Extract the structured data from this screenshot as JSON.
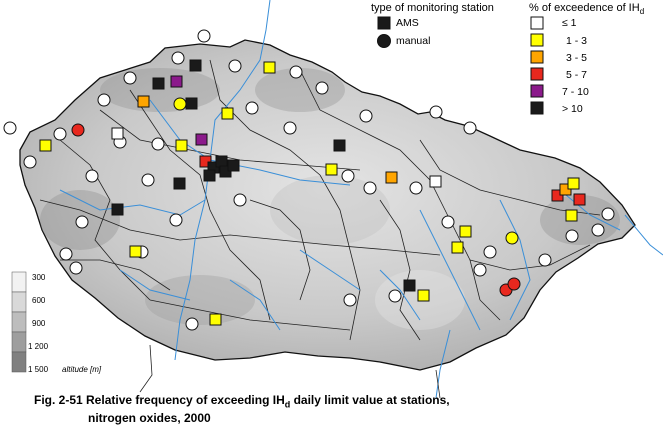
{
  "legend_type": {
    "title": "type of monitoring station",
    "items": [
      {
        "label": "AMS",
        "symbol": "square"
      },
      {
        "label": "manual",
        "symbol": "circle"
      }
    ]
  },
  "legend_classes": {
    "title_prefix": "% of exceedence of IH",
    "title_sub": "d",
    "items": [
      {
        "label": "≤ 1",
        "color": "#ffffff"
      },
      {
        "label": "1 - 3",
        "color": "#ffff00"
      },
      {
        "label": "3 - 5",
        "color": "#ffa500"
      },
      {
        "label": "5 - 7",
        "color": "#e8281e"
      },
      {
        "label": "7 - 10",
        "color": "#8b1a8b"
      },
      {
        "label": "> 10",
        "color": "#1a1a1a"
      }
    ]
  },
  "altitude": {
    "title": "altitude [m]",
    "ticks": [
      "300",
      "600",
      "900",
      "1 200",
      "1 500"
    ],
    "colors": [
      "#f2f2f2",
      "#d9d9d9",
      "#bdbdbd",
      "#9e9e9e",
      "#808080"
    ]
  },
  "caption": {
    "line1_pre": "Fig. 2-51  Relative frequency of exceeding IH",
    "line1_sub": "d",
    "line1_post": " daily limit value at stations,",
    "line2": "nitrogen oxides, 2000"
  },
  "colors": {
    "terrain": "#c9c9c9",
    "river": "#3a8fd8",
    "border": "#111111"
  }
}
